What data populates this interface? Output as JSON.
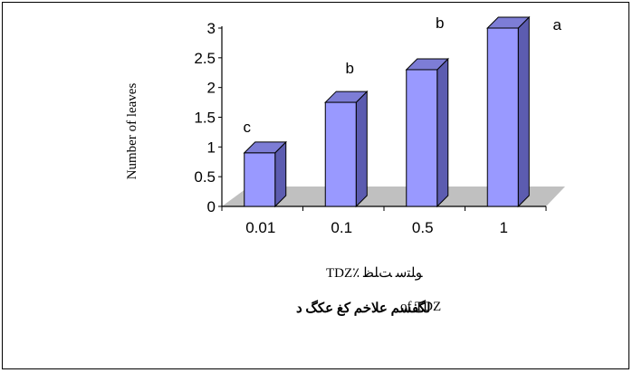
{
  "chart_data": {
    "type": "bar",
    "style": "3d-column",
    "categories": [
      "0.01",
      "0.1",
      "0.5",
      "1"
    ],
    "values": [
      0.9,
      1.75,
      2.3,
      3.0
    ],
    "significance_letters": [
      "c",
      "b",
      "b",
      "a"
    ],
    "ylabel": "Number  of leaves",
    "ylim": [
      0,
      3
    ],
    "yticks": [
      "0",
      "0.5",
      "1",
      "1.5",
      "2",
      "2.5",
      "3"
    ],
    "grid": false,
    "legend": "none",
    "colors": {
      "bar_front": "#9999ff",
      "bar_top": "#7d7dd6",
      "bar_side": "#5c5cb0",
      "floor": "#c0c0c0"
    }
  },
  "captions": {
    "line1": "TDZ٪ ﻮﻠﺘﺳ ﺖﻠﻈ",
    "line2_rtl": "لگفسم علاخم کغ عکگ  د",
    "line2_ltr": "of TDZ"
  }
}
